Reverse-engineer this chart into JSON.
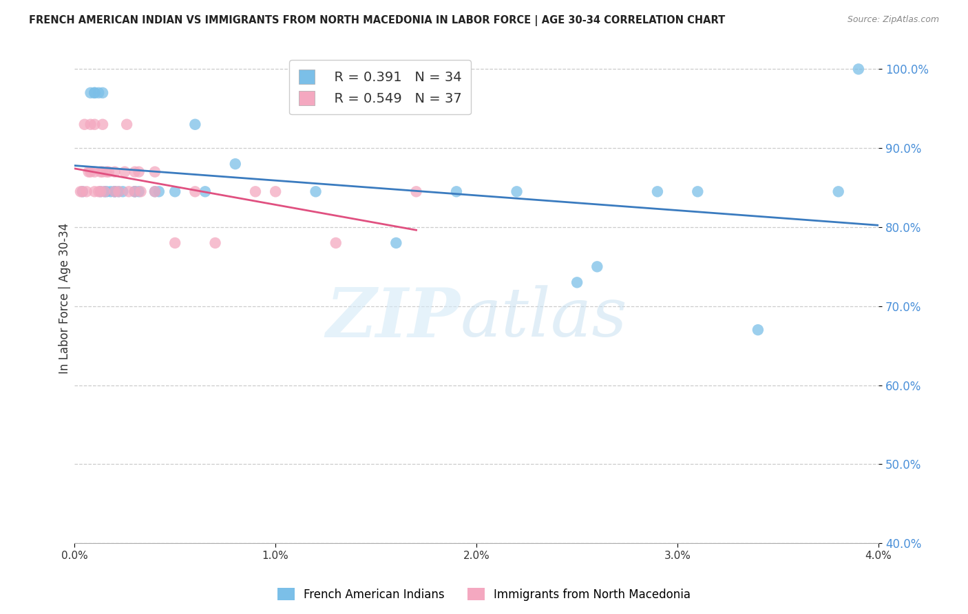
{
  "title": "FRENCH AMERICAN INDIAN VS IMMIGRANTS FROM NORTH MACEDONIA IN LABOR FORCE | AGE 30-34 CORRELATION CHART",
  "source": "Source: ZipAtlas.com",
  "ylabel": "In Labor Force | Age 30-34",
  "xlim": [
    0.0,
    0.04
  ],
  "ylim": [
    0.4,
    1.02
  ],
  "blue_color": "#7bbfe8",
  "pink_color": "#f4a8c0",
  "blue_line_color": "#3a7bbf",
  "pink_line_color": "#e05080",
  "R_blue": 0.391,
  "N_blue": 34,
  "R_pink": 0.549,
  "N_pink": 37,
  "blue_x": [
    0.0004,
    0.0008,
    0.001,
    0.001,
    0.0012,
    0.0013,
    0.0014,
    0.0015,
    0.0016,
    0.0018,
    0.002,
    0.002,
    0.0022,
    0.0024,
    0.003,
    0.003,
    0.0032,
    0.004,
    0.0042,
    0.005,
    0.006,
    0.0065,
    0.008,
    0.012,
    0.016,
    0.019,
    0.022,
    0.025,
    0.026,
    0.029,
    0.031,
    0.034,
    0.038,
    0.039
  ],
  "blue_y": [
    0.845,
    0.97,
    0.97,
    0.97,
    0.97,
    0.845,
    0.97,
    0.845,
    0.845,
    0.845,
    0.845,
    0.845,
    0.845,
    0.845,
    0.845,
    0.845,
    0.845,
    0.845,
    0.845,
    0.845,
    0.93,
    0.845,
    0.88,
    0.845,
    0.78,
    0.845,
    0.845,
    0.73,
    0.75,
    0.845,
    0.845,
    0.67,
    0.845,
    1.0
  ],
  "pink_x": [
    0.0003,
    0.0004,
    0.0005,
    0.0006,
    0.0007,
    0.0008,
    0.0008,
    0.001,
    0.001,
    0.001,
    0.0012,
    0.0013,
    0.0013,
    0.0014,
    0.0014,
    0.0015,
    0.0016,
    0.0017,
    0.002,
    0.002,
    0.0022,
    0.0025,
    0.0026,
    0.0027,
    0.003,
    0.003,
    0.0032,
    0.0033,
    0.004,
    0.004,
    0.005,
    0.006,
    0.007,
    0.009,
    0.01,
    0.013,
    0.017
  ],
  "pink_y": [
    0.845,
    0.845,
    0.93,
    0.845,
    0.87,
    0.87,
    0.93,
    0.845,
    0.87,
    0.93,
    0.845,
    0.87,
    0.845,
    0.87,
    0.93,
    0.845,
    0.87,
    0.87,
    0.845,
    0.87,
    0.845,
    0.87,
    0.93,
    0.845,
    0.845,
    0.87,
    0.87,
    0.845,
    0.845,
    0.87,
    0.78,
    0.845,
    0.78,
    0.845,
    0.845,
    0.78,
    0.845
  ]
}
